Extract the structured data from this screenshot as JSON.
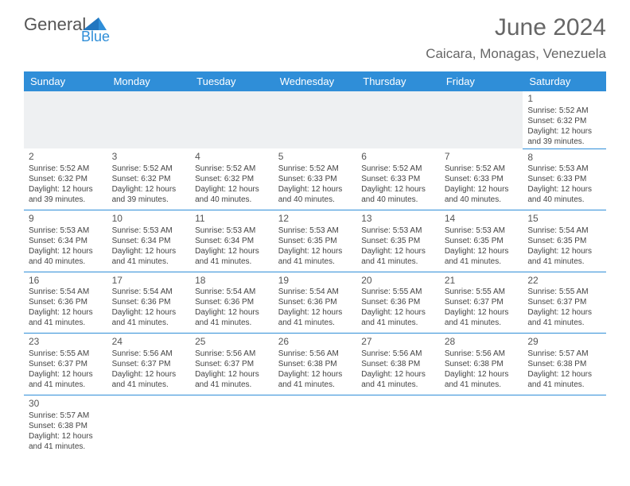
{
  "logo": {
    "part1": "General",
    "part2": "Blue"
  },
  "title": "June 2024",
  "location": "Caicara, Monagas, Venezuela",
  "style": {
    "header_bg": "#2f8ed8",
    "header_fg": "#ffffff",
    "row_divider": "#2f8ed8",
    "body_bg": "#ffffff",
    "empty_row_bg": "#eef0f2",
    "text_color": "#444444",
    "title_color": "#666666",
    "font_family": "Arial",
    "title_fontsize": 30,
    "location_fontsize": 17,
    "header_fontsize": 13,
    "cell_fontsize": 10,
    "daynum_fontsize": 12
  },
  "weekdays": [
    "Sunday",
    "Monday",
    "Tuesday",
    "Wednesday",
    "Thursday",
    "Friday",
    "Saturday"
  ],
  "weeks": [
    [
      null,
      null,
      null,
      null,
      null,
      null,
      {
        "d": "1",
        "rise": "5:52 AM",
        "set": "6:32 PM",
        "len": "12 hours and 39 minutes."
      }
    ],
    [
      {
        "d": "2",
        "rise": "5:52 AM",
        "set": "6:32 PM",
        "len": "12 hours and 39 minutes."
      },
      {
        "d": "3",
        "rise": "5:52 AM",
        "set": "6:32 PM",
        "len": "12 hours and 39 minutes."
      },
      {
        "d": "4",
        "rise": "5:52 AM",
        "set": "6:32 PM",
        "len": "12 hours and 40 minutes."
      },
      {
        "d": "5",
        "rise": "5:52 AM",
        "set": "6:33 PM",
        "len": "12 hours and 40 minutes."
      },
      {
        "d": "6",
        "rise": "5:52 AM",
        "set": "6:33 PM",
        "len": "12 hours and 40 minutes."
      },
      {
        "d": "7",
        "rise": "5:52 AM",
        "set": "6:33 PM",
        "len": "12 hours and 40 minutes."
      },
      {
        "d": "8",
        "rise": "5:53 AM",
        "set": "6:33 PM",
        "len": "12 hours and 40 minutes."
      }
    ],
    [
      {
        "d": "9",
        "rise": "5:53 AM",
        "set": "6:34 PM",
        "len": "12 hours and 40 minutes."
      },
      {
        "d": "10",
        "rise": "5:53 AM",
        "set": "6:34 PM",
        "len": "12 hours and 41 minutes."
      },
      {
        "d": "11",
        "rise": "5:53 AM",
        "set": "6:34 PM",
        "len": "12 hours and 41 minutes."
      },
      {
        "d": "12",
        "rise": "5:53 AM",
        "set": "6:35 PM",
        "len": "12 hours and 41 minutes."
      },
      {
        "d": "13",
        "rise": "5:53 AM",
        "set": "6:35 PM",
        "len": "12 hours and 41 minutes."
      },
      {
        "d": "14",
        "rise": "5:53 AM",
        "set": "6:35 PM",
        "len": "12 hours and 41 minutes."
      },
      {
        "d": "15",
        "rise": "5:54 AM",
        "set": "6:35 PM",
        "len": "12 hours and 41 minutes."
      }
    ],
    [
      {
        "d": "16",
        "rise": "5:54 AM",
        "set": "6:36 PM",
        "len": "12 hours and 41 minutes."
      },
      {
        "d": "17",
        "rise": "5:54 AM",
        "set": "6:36 PM",
        "len": "12 hours and 41 minutes."
      },
      {
        "d": "18",
        "rise": "5:54 AM",
        "set": "6:36 PM",
        "len": "12 hours and 41 minutes."
      },
      {
        "d": "19",
        "rise": "5:54 AM",
        "set": "6:36 PM",
        "len": "12 hours and 41 minutes."
      },
      {
        "d": "20",
        "rise": "5:55 AM",
        "set": "6:36 PM",
        "len": "12 hours and 41 minutes."
      },
      {
        "d": "21",
        "rise": "5:55 AM",
        "set": "6:37 PM",
        "len": "12 hours and 41 minutes."
      },
      {
        "d": "22",
        "rise": "5:55 AM",
        "set": "6:37 PM",
        "len": "12 hours and 41 minutes."
      }
    ],
    [
      {
        "d": "23",
        "rise": "5:55 AM",
        "set": "6:37 PM",
        "len": "12 hours and 41 minutes."
      },
      {
        "d": "24",
        "rise": "5:56 AM",
        "set": "6:37 PM",
        "len": "12 hours and 41 minutes."
      },
      {
        "d": "25",
        "rise": "5:56 AM",
        "set": "6:37 PM",
        "len": "12 hours and 41 minutes."
      },
      {
        "d": "26",
        "rise": "5:56 AM",
        "set": "6:38 PM",
        "len": "12 hours and 41 minutes."
      },
      {
        "d": "27",
        "rise": "5:56 AM",
        "set": "6:38 PM",
        "len": "12 hours and 41 minutes."
      },
      {
        "d": "28",
        "rise": "5:56 AM",
        "set": "6:38 PM",
        "len": "12 hours and 41 minutes."
      },
      {
        "d": "29",
        "rise": "5:57 AM",
        "set": "6:38 PM",
        "len": "12 hours and 41 minutes."
      }
    ],
    [
      {
        "d": "30",
        "rise": "5:57 AM",
        "set": "6:38 PM",
        "len": "12 hours and 41 minutes."
      },
      null,
      null,
      null,
      null,
      null,
      null
    ]
  ],
  "labels": {
    "sunrise": "Sunrise:",
    "sunset": "Sunset:",
    "daylight": "Daylight:"
  }
}
